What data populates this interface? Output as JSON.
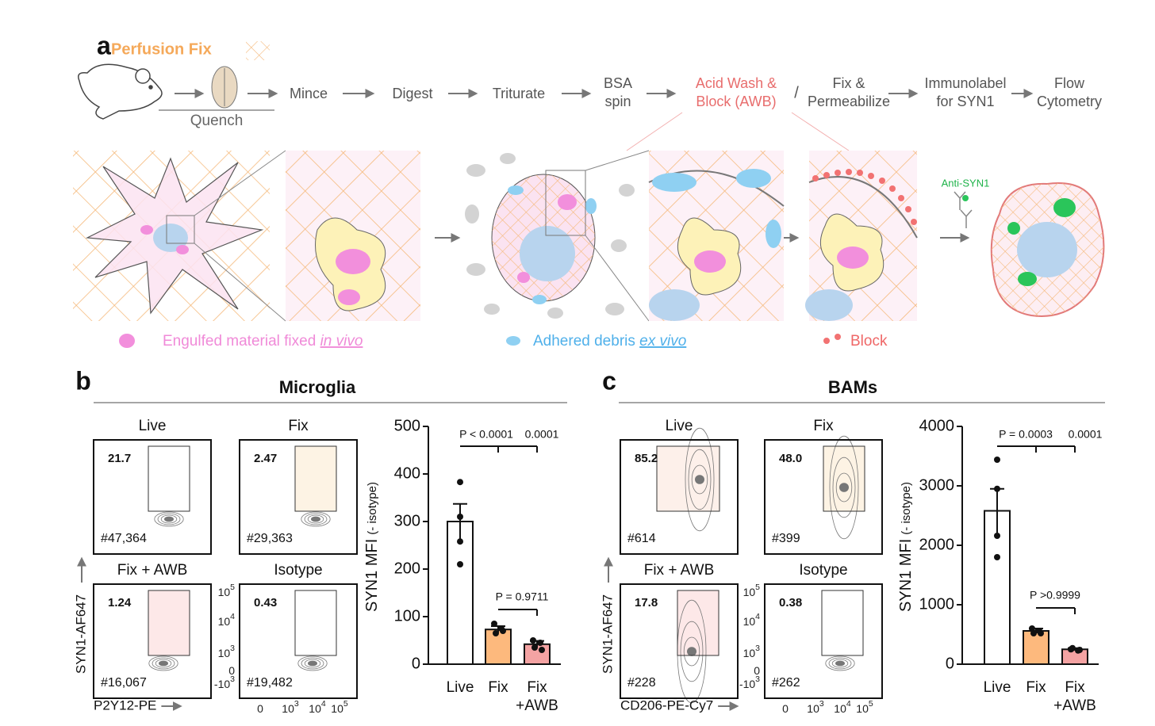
{
  "panel_a": {
    "label": "a",
    "title": "Perfusion Fix",
    "quench": "Quench",
    "steps": [
      [
        "Mince"
      ],
      [
        "Digest"
      ],
      [
        "Triturate"
      ],
      [
        "BSA",
        "spin"
      ],
      [
        "Acid Wash &",
        "Block (AWB)"
      ],
      [
        "Fix &",
        "Permeabilize"
      ],
      [
        "Immunolabel",
        "for SYN1"
      ],
      [
        "Flow",
        "Cytometry"
      ]
    ],
    "slash": "/",
    "antibody": "Anti-SYN1",
    "legend": [
      {
        "text": "Engulfed material fixed ",
        "em": "in vivo"
      },
      {
        "text": "Adhered debris ",
        "em": "ex vivo"
      },
      {
        "text": "Block"
      }
    ]
  },
  "panels": [
    {
      "label": "b",
      "title": "Microglia",
      "ylabel": "SYN1-AF647",
      "xlabel": "P2Y12-PE",
      "plots": [
        {
          "title": "Live",
          "percent": "21.7",
          "count": "#47,364"
        },
        {
          "title": "Fix",
          "percent": "2.47",
          "count": "#29,363"
        },
        {
          "title": "Fix + AWB",
          "percent": "1.24",
          "count": "#16,067"
        },
        {
          "title": "Isotype",
          "percent": "0.43",
          "count": "#19,482"
        }
      ],
      "flow_yticks": [
        {
          "base": "10",
          "exp": "5"
        },
        {
          "base": "10",
          "exp": "4"
        },
        {
          "base": "10",
          "exp": "3"
        },
        {
          "base": "0"
        },
        {
          "base": "-10",
          "exp": "3"
        }
      ],
      "flow_xticks": [
        {
          "base": "0"
        },
        {
          "base": "10",
          "exp": "3"
        },
        {
          "base": "10",
          "exp": "4"
        },
        {
          "base": "10",
          "exp": "5"
        }
      ]
    },
    {
      "label": "c",
      "title": "BAMs",
      "ylabel": "SYN1-AF647",
      "xlabel": "CD206-PE-Cy7",
      "plots": [
        {
          "title": "Live",
          "percent": "85.2",
          "count": "#614"
        },
        {
          "title": "Fix",
          "percent": "48.0",
          "count": "#399"
        },
        {
          "title": "Fix + AWB",
          "percent": "17.8",
          "count": "#228"
        },
        {
          "title": "Isotype",
          "percent": "0.38",
          "count": "#262"
        }
      ],
      "flow_yticks": [
        {
          "base": "10",
          "exp": "5"
        },
        {
          "base": "10",
          "exp": "4"
        },
        {
          "base": "10",
          "exp": "3"
        },
        {
          "base": "0"
        },
        {
          "base": "-10",
          "exp": "3"
        }
      ],
      "flow_xticks": [
        {
          "base": "0"
        },
        {
          "base": "10",
          "exp": "3"
        },
        {
          "base": "10",
          "exp": "4"
        },
        {
          "base": "10",
          "exp": "5"
        }
      ]
    }
  ],
  "chart_data": [
    {
      "type": "bar",
      "ylabel": "SYN1 MFI",
      "ylabel_sub": "(- isotype)",
      "categories": [
        "Live",
        "Fix",
        "Fix\n+AWB"
      ],
      "values": [
        300,
        73,
        42
      ],
      "errors": [
        37,
        7,
        7
      ],
      "points": [
        [
          383,
          310,
          258,
          210
        ],
        [
          85,
          75,
          65,
          70
        ],
        [
          50,
          45,
          35,
          30
        ]
      ],
      "colors": [
        "#ffffff",
        "#fdb97d",
        "#f4a3a3"
      ],
      "ylim": [
        0,
        500
      ],
      "yticks": [
        0,
        100,
        200,
        300,
        400,
        500
      ],
      "annotations": [
        "P < 0.0001",
        "0.0001",
        "P = 0.9711"
      ]
    },
    {
      "type": "bar",
      "ylabel": "SYN1 MFI",
      "ylabel_sub": "(- isotype)",
      "categories": [
        "Live",
        "Fix",
        "Fix\n+AWB"
      ],
      "values": [
        2580,
        560,
        250
      ],
      "errors": [
        370,
        40,
        20
      ],
      "points": [
        [
          3440,
          2950,
          2160,
          1800
        ],
        [
          600,
          560,
          520,
          520
        ],
        [
          250,
          230,
          270,
          240
        ]
      ],
      "colors": [
        "#ffffff",
        "#fdb97d",
        "#f4a3a3"
      ],
      "ylim": [
        0,
        4000
      ],
      "yticks": [
        0,
        1000,
        2000,
        3000,
        4000
      ],
      "annotations": [
        "P = 0.0003",
        "0.0001",
        "P >0.9999"
      ]
    }
  ]
}
